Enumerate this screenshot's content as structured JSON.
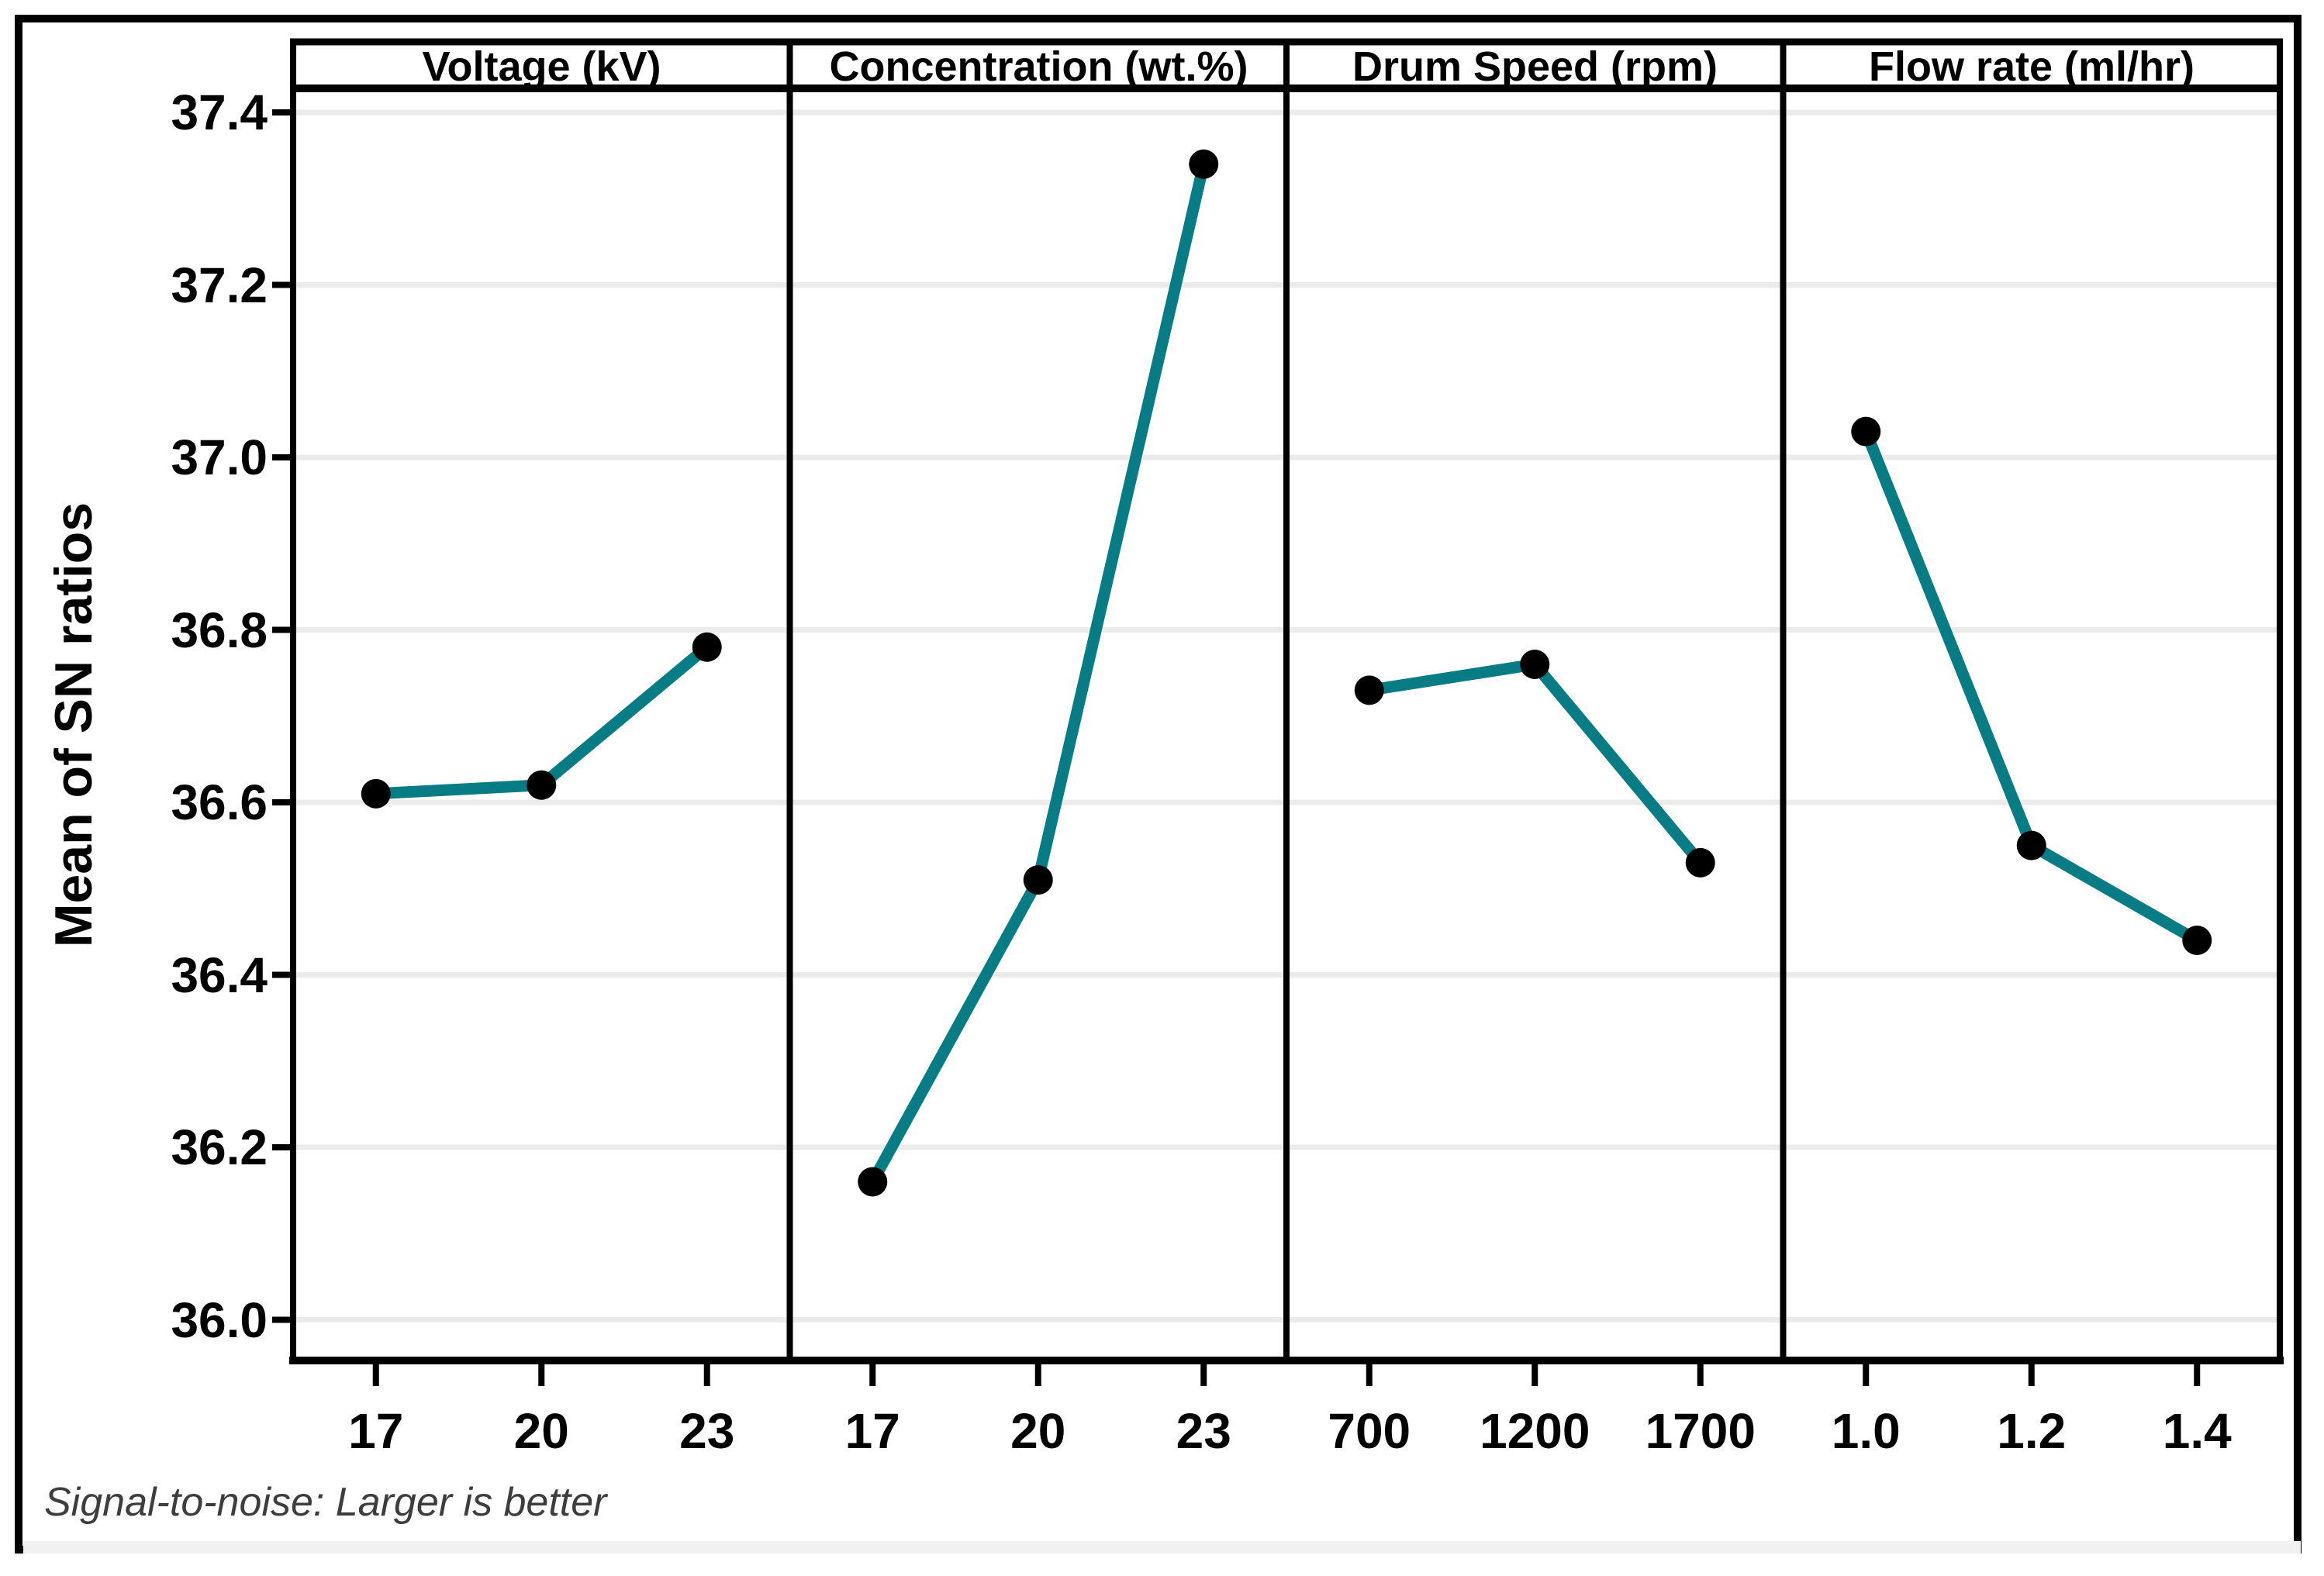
{
  "figure": {
    "background": "#ffffff",
    "border_color": "#000000"
  },
  "y_axis_title": "Mean of SN ratios",
  "footer_note": "Signal-to-noise: Larger is better",
  "chart_data": {
    "type": "line",
    "layout": "4-panel main effects plot",
    "ylabel": "Mean of SN ratios",
    "ylim": [
      36.0,
      37.4
    ],
    "y_tick_step": 0.2,
    "y_tick_labels": [
      "36.0",
      "36.2",
      "36.4",
      "36.6",
      "36.8",
      "37.0",
      "37.2",
      "37.4"
    ],
    "grid": "horizontal",
    "note": "Signal-to-noise: Larger is better",
    "line_color": "#077C85",
    "marker_color": "#000000",
    "gridline_color": "#EBEBEB",
    "axis_color": "#000000",
    "panels": [
      {
        "title": "Voltage (kV)",
        "categories": [
          "17",
          "20",
          "23"
        ],
        "values": [
          36.61,
          36.62,
          36.78
        ]
      },
      {
        "title": "Concentration (wt.%)",
        "categories": [
          "17",
          "20",
          "23"
        ],
        "values": [
          36.16,
          36.51,
          37.34
        ]
      },
      {
        "title": "Drum Speed (rpm)",
        "categories": [
          "700",
          "1200",
          "1700"
        ],
        "values": [
          36.73,
          36.76,
          36.53
        ]
      },
      {
        "title": "Flow rate (ml/hr)",
        "categories": [
          "1.0",
          "1.2",
          "1.4"
        ],
        "values": [
          37.03,
          36.55,
          36.44
        ]
      }
    ]
  }
}
